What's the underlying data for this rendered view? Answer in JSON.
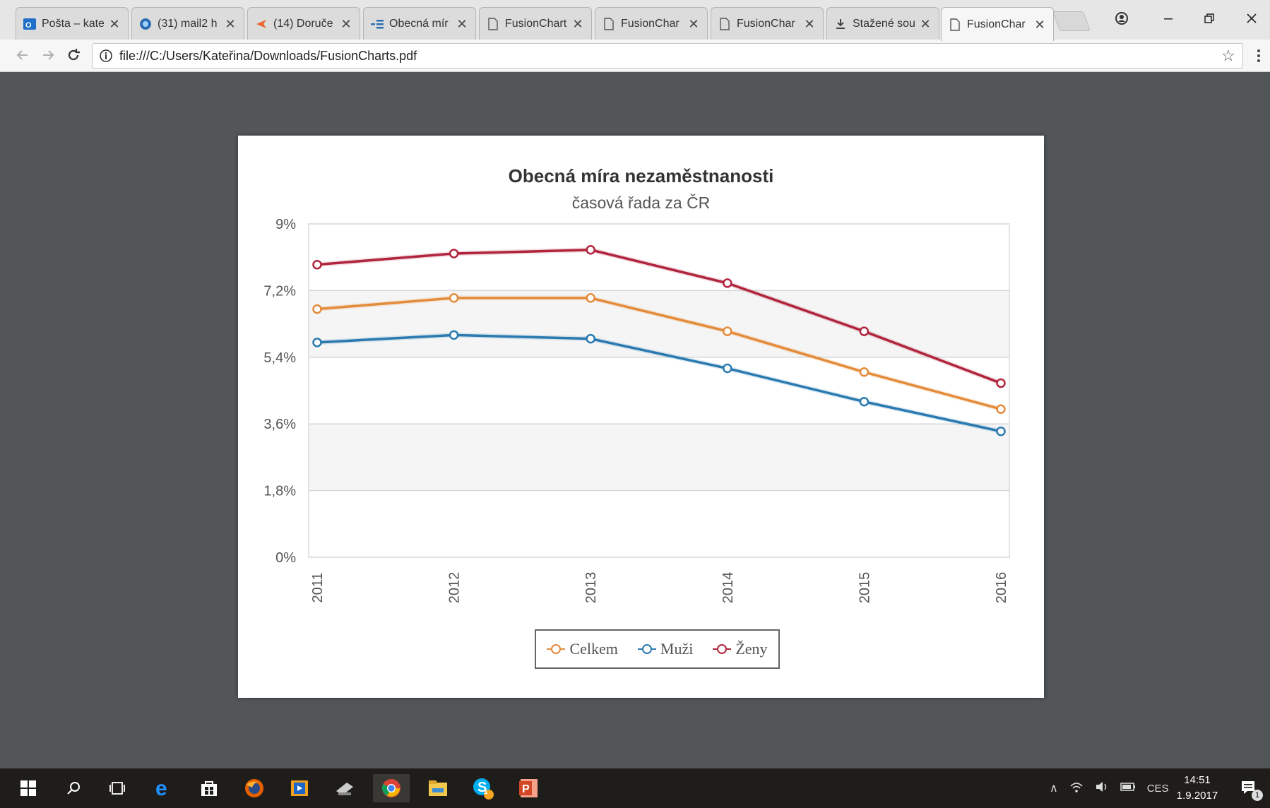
{
  "browser": {
    "tabs": [
      {
        "title": "Pošta – kate",
        "icon": "outlook-icon"
      },
      {
        "title": "(31) mail2 h",
        "icon": "mail-icon"
      },
      {
        "title": "(14) Doruče",
        "icon": "envelope-icon"
      },
      {
        "title": "Obecná mír",
        "icon": "list-icon"
      },
      {
        "title": "FusionChart",
        "icon": "document-icon"
      },
      {
        "title": "FusionChar",
        "icon": "document-icon"
      },
      {
        "title": "FusionChar",
        "icon": "document-icon"
      },
      {
        "title": "Stažené sou",
        "icon": "download-icon"
      },
      {
        "title": "FusionChar",
        "icon": "document-icon",
        "active": true
      }
    ],
    "tab_close": "✕",
    "url": "file:///C:/Users/Kateřina/Downloads/FusionCharts.pdf"
  },
  "chart": {
    "title": "Obecná míra nezaměstnanosti",
    "subtitle": "časová řada za ČR",
    "legend": [
      "Celkem",
      "Muži",
      "Ženy"
    ]
  },
  "chart_data": {
    "type": "line",
    "title": "Obecná míra nezaměstnanosti",
    "subtitle": "časová řada za ČR",
    "x": [
      "2011",
      "2012",
      "2013",
      "2014",
      "2015",
      "2016"
    ],
    "y_ticks": [
      "0%",
      "1,8%",
      "3,6%",
      "5,4%",
      "7,2%",
      "9%"
    ],
    "ylim": [
      0,
      9
    ],
    "grid": true,
    "legend_position": "bottom",
    "series": [
      {
        "name": "Celkem",
        "color": "#e48b3a",
        "values": [
          6.7,
          7.0,
          7.0,
          6.1,
          5.0,
          4.0
        ]
      },
      {
        "name": "Muži",
        "color": "#2a7ab0",
        "values": [
          5.8,
          6.0,
          5.9,
          5.1,
          4.2,
          3.4
        ]
      },
      {
        "name": "Ženy",
        "color": "#b0243d",
        "values": [
          7.9,
          8.2,
          8.3,
          7.4,
          6.1,
          4.7
        ]
      }
    ]
  },
  "taskbar": {
    "language": "CES",
    "time": "14:51",
    "date": "1.9.2017",
    "notification_count": "1",
    "skype_badge": "1"
  }
}
